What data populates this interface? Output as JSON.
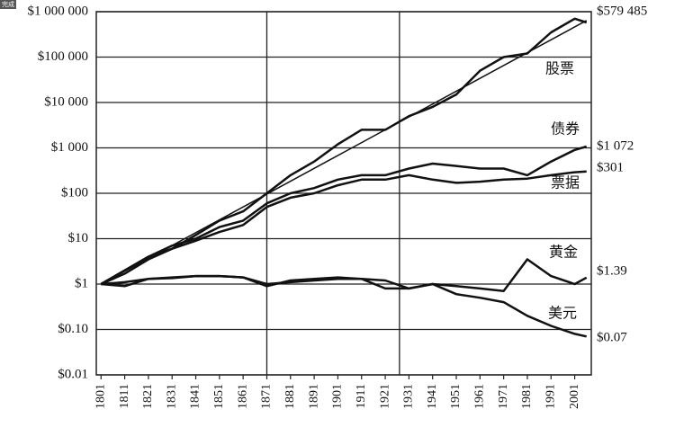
{
  "badge": "完成",
  "chart_data": {
    "type": "line",
    "log_scale": true,
    "grid": true,
    "color": "#111111",
    "x": [
      1801,
      1811,
      1821,
      1831,
      1841,
      1851,
      1861,
      1871,
      1881,
      1891,
      1901,
      1911,
      1921,
      1931,
      1941,
      1951,
      1961,
      1971,
      1981,
      1991,
      2001,
      2006
    ],
    "xlim": [
      1799,
      2008
    ],
    "xticks": [
      1801,
      1811,
      1821,
      1831,
      1841,
      1851,
      1861,
      1871,
      1881,
      1891,
      1901,
      1911,
      1921,
      1931,
      1941,
      1951,
      1961,
      1971,
      1981,
      1991,
      2001
    ],
    "vlines": [
      1871,
      1927
    ],
    "ylim": [
      0.01,
      1000000
    ],
    "yticks": [
      {
        "value": 0.01,
        "label": "$0.01"
      },
      {
        "value": 0.1,
        "label": "$0.10"
      },
      {
        "value": 1,
        "label": "$1"
      },
      {
        "value": 10,
        "label": "$10"
      },
      {
        "value": 100,
        "label": "$100"
      },
      {
        "value": 1000,
        "label": "$1 000"
      },
      {
        "value": 10000,
        "label": "$10 000"
      },
      {
        "value": 100000,
        "label": "$100 000"
      },
      {
        "value": 1000000,
        "label": "$1 000 000"
      }
    ],
    "trend_line": {
      "x": [
        1801,
        2006
      ],
      "values": [
        1,
        640000
      ]
    },
    "series": [
      {
        "name": "股票",
        "color": "#111111",
        "values": [
          1,
          1.7,
          3.5,
          6,
          12,
          25,
          40,
          100,
          250,
          500,
          1200,
          2500,
          2500,
          5000,
          8000,
          15000,
          50000,
          100000,
          120000,
          350000,
          700000,
          579485
        ],
        "value_labels": [
          null,
          null,
          null,
          null,
          null,
          null,
          null,
          null,
          null,
          null,
          null,
          null,
          null,
          null,
          null,
          null,
          null,
          null,
          null,
          null,
          null,
          "$579 485"
        ]
      },
      {
        "name": "债券",
        "color": "#111111",
        "values": [
          1,
          2,
          4,
          7,
          10,
          18,
          25,
          60,
          100,
          130,
          200,
          250,
          250,
          350,
          450,
          400,
          350,
          350,
          250,
          500,
          900,
          1072
        ],
        "value_labels": [
          null,
          null,
          null,
          null,
          null,
          null,
          null,
          null,
          null,
          null,
          null,
          null,
          null,
          null,
          null,
          null,
          null,
          null,
          null,
          null,
          null,
          "$1 072"
        ]
      },
      {
        "name": "票据",
        "color": "#111111",
        "values": [
          1,
          2,
          4,
          6,
          9,
          14,
          20,
          50,
          80,
          100,
          150,
          200,
          200,
          250,
          200,
          170,
          180,
          200,
          210,
          250,
          290,
          301
        ],
        "value_labels": [
          null,
          null,
          null,
          null,
          null,
          null,
          null,
          null,
          null,
          null,
          null,
          null,
          null,
          null,
          null,
          null,
          null,
          null,
          null,
          null,
          null,
          "$301"
        ]
      },
      {
        "name": "黄金",
        "color": "#111111",
        "values": [
          1,
          0.9,
          1.3,
          1.35,
          1.5,
          1.5,
          1.4,
          1.0,
          1.1,
          1.2,
          1.3,
          1.3,
          1.2,
          0.8,
          1.0,
          0.9,
          0.8,
          0.7,
          3.5,
          1.5,
          1.0,
          1.39
        ],
        "value_labels": [
          null,
          null,
          null,
          null,
          null,
          null,
          null,
          null,
          null,
          null,
          null,
          null,
          null,
          null,
          null,
          null,
          null,
          null,
          null,
          null,
          null,
          "$1.39"
        ]
      },
      {
        "name": "美元",
        "color": "#111111",
        "values": [
          1,
          1.1,
          1.3,
          1.4,
          1.5,
          1.5,
          1.4,
          0.9,
          1.2,
          1.3,
          1.4,
          1.3,
          0.8,
          0.8,
          1.0,
          0.6,
          0.5,
          0.4,
          0.2,
          0.12,
          0.08,
          0.07
        ],
        "value_labels": [
          null,
          null,
          null,
          null,
          null,
          null,
          null,
          null,
          null,
          null,
          null,
          null,
          null,
          null,
          null,
          null,
          null,
          null,
          null,
          null,
          null,
          "$0.07"
        ]
      }
    ]
  }
}
